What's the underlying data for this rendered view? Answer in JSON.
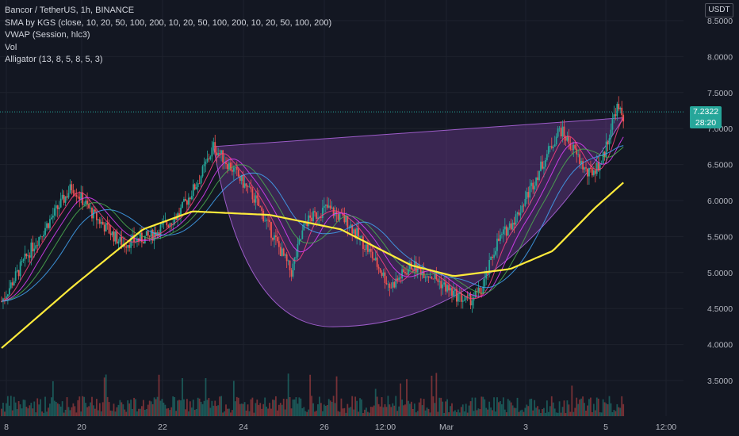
{
  "legend": {
    "symbol": "Bancor / TetherUS, 1h, BINANCE",
    "indicators": [
      "SMA by KGS (close, 10, 20, 50, 100, 200, 10, 20, 50, 100, 200, 10, 20, 50, 100, 200)",
      "VWAP (Session, hlc3)",
      "Vol",
      "Alligator (13, 8, 5, 8, 5, 3)"
    ]
  },
  "price_axis": {
    "currency": "USDT",
    "ticks": [
      "8.5000",
      "8.0000",
      "7.5000",
      "7.0000",
      "6.5000",
      "6.0000",
      "5.5000",
      "5.0000",
      "4.5000",
      "4.0000",
      "3.5000"
    ],
    "last_price": "7.2322",
    "countdown": "28:20"
  },
  "time_axis": {
    "ticks": [
      "8",
      "20",
      "22",
      "24",
      "26",
      "12:00",
      "Mar",
      "3",
      "5",
      "12:00"
    ]
  },
  "colors": {
    "background": "#131722",
    "up_candle": "#26a69a",
    "down_candle": "#ef5350",
    "sma_200": "#ffeb3b",
    "pattern_fill": "#7b3fa0",
    "grid": "#1e222d"
  },
  "chart_data": {
    "type": "candlestick",
    "x_ticks": [
      "8",
      "20",
      "22",
      "24",
      "26",
      "12:00",
      "Mar",
      "3",
      "5",
      "12:00"
    ],
    "ylim": [
      3.05,
      8.65
    ],
    "y_ticks": [
      3.5,
      4.0,
      4.5,
      5.0,
      5.5,
      6.0,
      6.5,
      7.0,
      7.5,
      8.0,
      8.5
    ],
    "last_price": 7.2322,
    "price_path": [
      [
        0,
        4.6
      ],
      [
        4,
        5.3
      ],
      [
        8,
        5.9
      ],
      [
        10,
        6.2
      ],
      [
        13,
        5.8
      ],
      [
        17,
        5.4
      ],
      [
        21,
        5.5
      ],
      [
        25,
        5.8
      ],
      [
        28,
        6.3
      ],
      [
        30,
        6.75
      ],
      [
        33,
        6.4
      ],
      [
        36,
        6.0
      ],
      [
        39,
        5.4
      ],
      [
        41,
        5.0
      ],
      [
        43,
        5.7
      ],
      [
        46,
        5.9
      ],
      [
        49,
        5.7
      ],
      [
        52,
        5.3
      ],
      [
        55,
        4.8
      ],
      [
        58,
        5.1
      ],
      [
        61,
        4.95
      ],
      [
        64,
        4.7
      ],
      [
        66,
        4.6
      ],
      [
        68,
        4.75
      ],
      [
        70,
        5.4
      ],
      [
        73,
        5.8
      ],
      [
        76,
        6.4
      ],
      [
        79,
        7.0
      ],
      [
        81,
        6.7
      ],
      [
        83,
        6.35
      ],
      [
        85,
        6.55
      ],
      [
        87,
        7.3
      ],
      [
        88,
        7.15
      ]
    ],
    "sma_200_path": [
      [
        0,
        3.95
      ],
      [
        10,
        4.8
      ],
      [
        20,
        5.6
      ],
      [
        27,
        5.85
      ],
      [
        38,
        5.8
      ],
      [
        48,
        5.6
      ],
      [
        58,
        5.1
      ],
      [
        64,
        4.95
      ],
      [
        72,
        5.05
      ],
      [
        78,
        5.3
      ],
      [
        84,
        5.9
      ],
      [
        88,
        6.25
      ]
    ],
    "cup_pattern": {
      "left_rim": [
        30,
        6.75
      ],
      "bottom": [
        48,
        4.25
      ],
      "right_rim": [
        88,
        7.15
      ]
    },
    "volume_axis": "overlay, bottom"
  }
}
